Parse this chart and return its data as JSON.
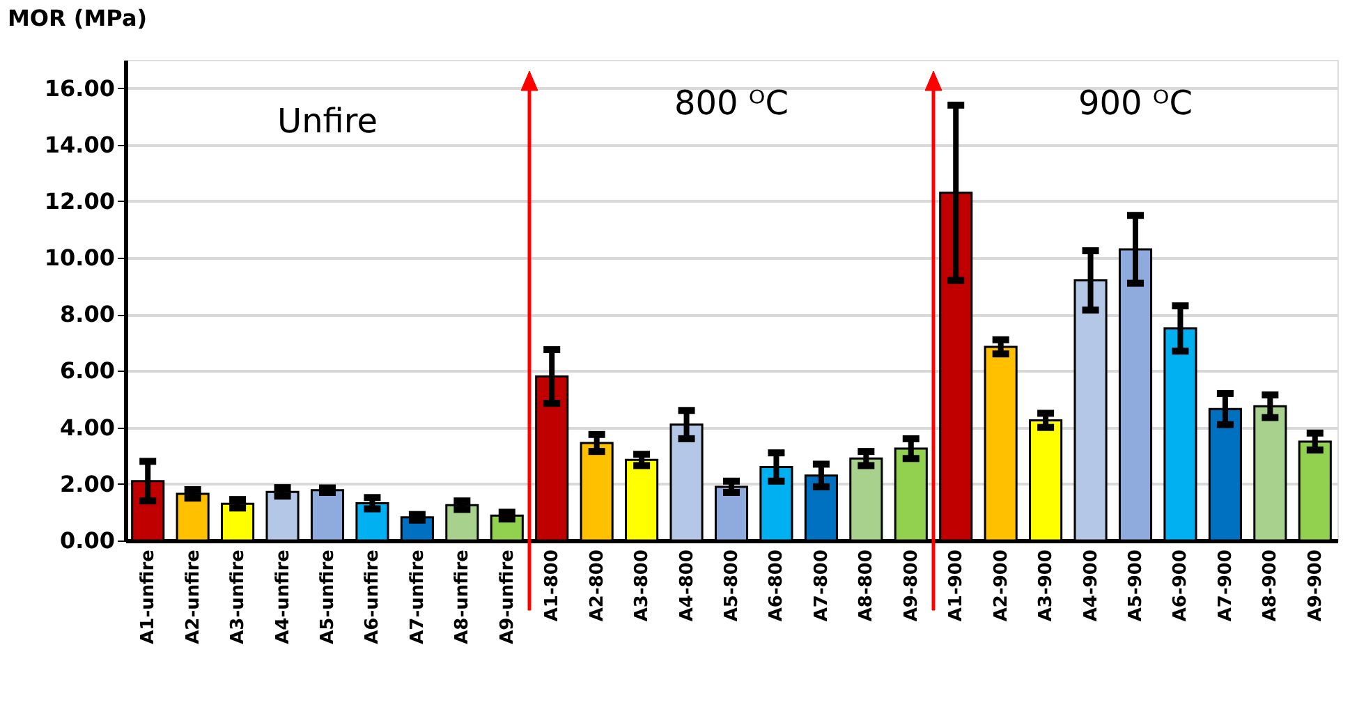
{
  "chart_data": {
    "type": "bar",
    "ylabel": "MOR (MPa)",
    "categories": [
      "A1-unfire",
      "A2-unfire",
      "A3-unfire",
      "A4-unfire",
      "A5-unfire",
      "A6-unfire",
      "A7-unfire",
      "A8-unfire",
      "A9-unfire",
      "A1-800",
      "A2-800",
      "A3-800",
      "A4-800",
      "A5-800",
      "A6-800",
      "A7-800",
      "A8-800",
      "A9-800",
      "A1-900",
      "A2-900",
      "A3-900",
      "A4-900",
      "A5-900",
      "A6-900",
      "A7-900",
      "A8-900",
      "A9-900"
    ],
    "values": [
      2.1,
      1.65,
      1.3,
      1.72,
      1.78,
      1.32,
      0.82,
      1.25,
      0.88,
      5.8,
      3.45,
      2.85,
      4.1,
      1.9,
      2.6,
      2.3,
      2.9,
      3.25,
      12.3,
      6.85,
      4.25,
      9.2,
      10.3,
      7.5,
      4.65,
      4.75,
      3.5
    ],
    "errors": [
      0.7,
      0.15,
      0.15,
      0.15,
      0.08,
      0.2,
      0.1,
      0.15,
      0.12,
      0.95,
      0.3,
      0.2,
      0.5,
      0.2,
      0.5,
      0.4,
      0.25,
      0.35,
      3.1,
      0.25,
      0.25,
      1.05,
      1.2,
      0.8,
      0.55,
      0.4,
      0.3
    ],
    "colors": [
      "#c00000",
      "#ffc000",
      "#ffff00",
      "#b4c7e7",
      "#8faadc",
      "#00b0f0",
      "#0070c0",
      "#a9d18e",
      "#92d050",
      "#c00000",
      "#ffc000",
      "#ffff00",
      "#b4c7e7",
      "#8faadc",
      "#00b0f0",
      "#0070c0",
      "#a9d18e",
      "#92d050",
      "#c00000",
      "#ffc000",
      "#ffff00",
      "#b4c7e7",
      "#8faadc",
      "#00b0f0",
      "#0070c0",
      "#a9d18e",
      "#92d050"
    ],
    "ylim": [
      0,
      17
    ],
    "yticks": [
      {
        "value": 0,
        "label": "0.00"
      },
      {
        "value": 2,
        "label": "2.00"
      },
      {
        "value": 4,
        "label": "4.00"
      },
      {
        "value": 6,
        "label": "6.00"
      },
      {
        "value": 8,
        "label": "8.00"
      },
      {
        "value": 10,
        "label": "10.00"
      },
      {
        "value": 12,
        "label": "12.00"
      },
      {
        "value": 14,
        "label": "14.00"
      },
      {
        "value": 16,
        "label": "16.00"
      }
    ],
    "grid": "y",
    "annotations": [
      "Unfire",
      "800 ᴼC",
      "900 ᴼC"
    ]
  }
}
